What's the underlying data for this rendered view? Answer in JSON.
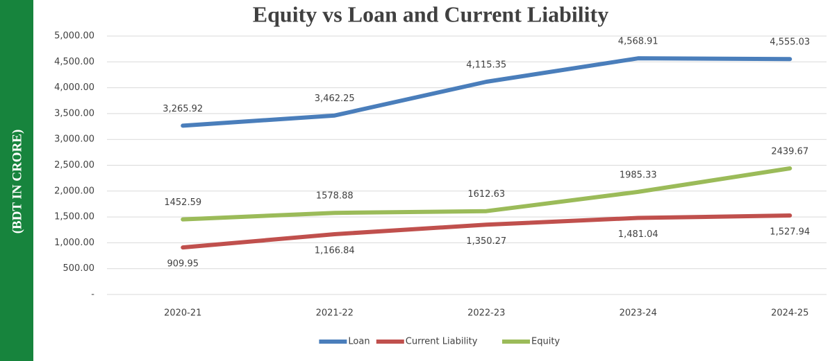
{
  "chart_data": {
    "type": "line",
    "title": "Equity vs Loan and Current Liability",
    "y_label": "(BDT IN CRORE)",
    "categories": [
      "2020-21",
      "2021-22",
      "2022-23",
      "2023-24",
      "2024-25"
    ],
    "series": [
      {
        "name": "Loan",
        "color": "#4a7ebb",
        "values": [
          3265.92,
          3462.25,
          4115.35,
          4568.91,
          4555.03
        ],
        "value_labels": [
          "3,265.92",
          "3,462.25",
          "4,115.35",
          "4,568.91",
          "4,555.03"
        ]
      },
      {
        "name": "Current Liability",
        "color": "#c0504d",
        "values": [
          909.95,
          1166.84,
          1350.27,
          1481.04,
          1527.94
        ],
        "value_labels": [
          "909.95",
          "1,166.84",
          "1,350.27",
          "1,481.04",
          "1,527.94"
        ]
      },
      {
        "name": "Equity",
        "color": "#9bbb59",
        "values": [
          1452.59,
          1578.88,
          1612.63,
          1985.33,
          2439.67
        ]
      }
    ],
    "ylim": [
      0,
      5000
    ],
    "yticks": [
      {
        "value": 0,
        "label": "-"
      },
      {
        "value": 500,
        "label": "500.00"
      },
      {
        "value": 1000,
        "label": "1,000.00"
      },
      {
        "value": 1500,
        "label": "1,500.00"
      },
      {
        "value": 2000,
        "label": "2,000.00"
      },
      {
        "value": 2500,
        "label": "2,500.00"
      },
      {
        "value": 3000,
        "label": "3,000.00"
      },
      {
        "value": 3500,
        "label": "3,500.00"
      },
      {
        "value": 4000,
        "label": "4,000.00"
      },
      {
        "value": 4500,
        "label": "4,500.00"
      },
      {
        "value": 5000,
        "label": "5,000.00"
      }
    ],
    "grid": true,
    "legend": "bottom"
  }
}
